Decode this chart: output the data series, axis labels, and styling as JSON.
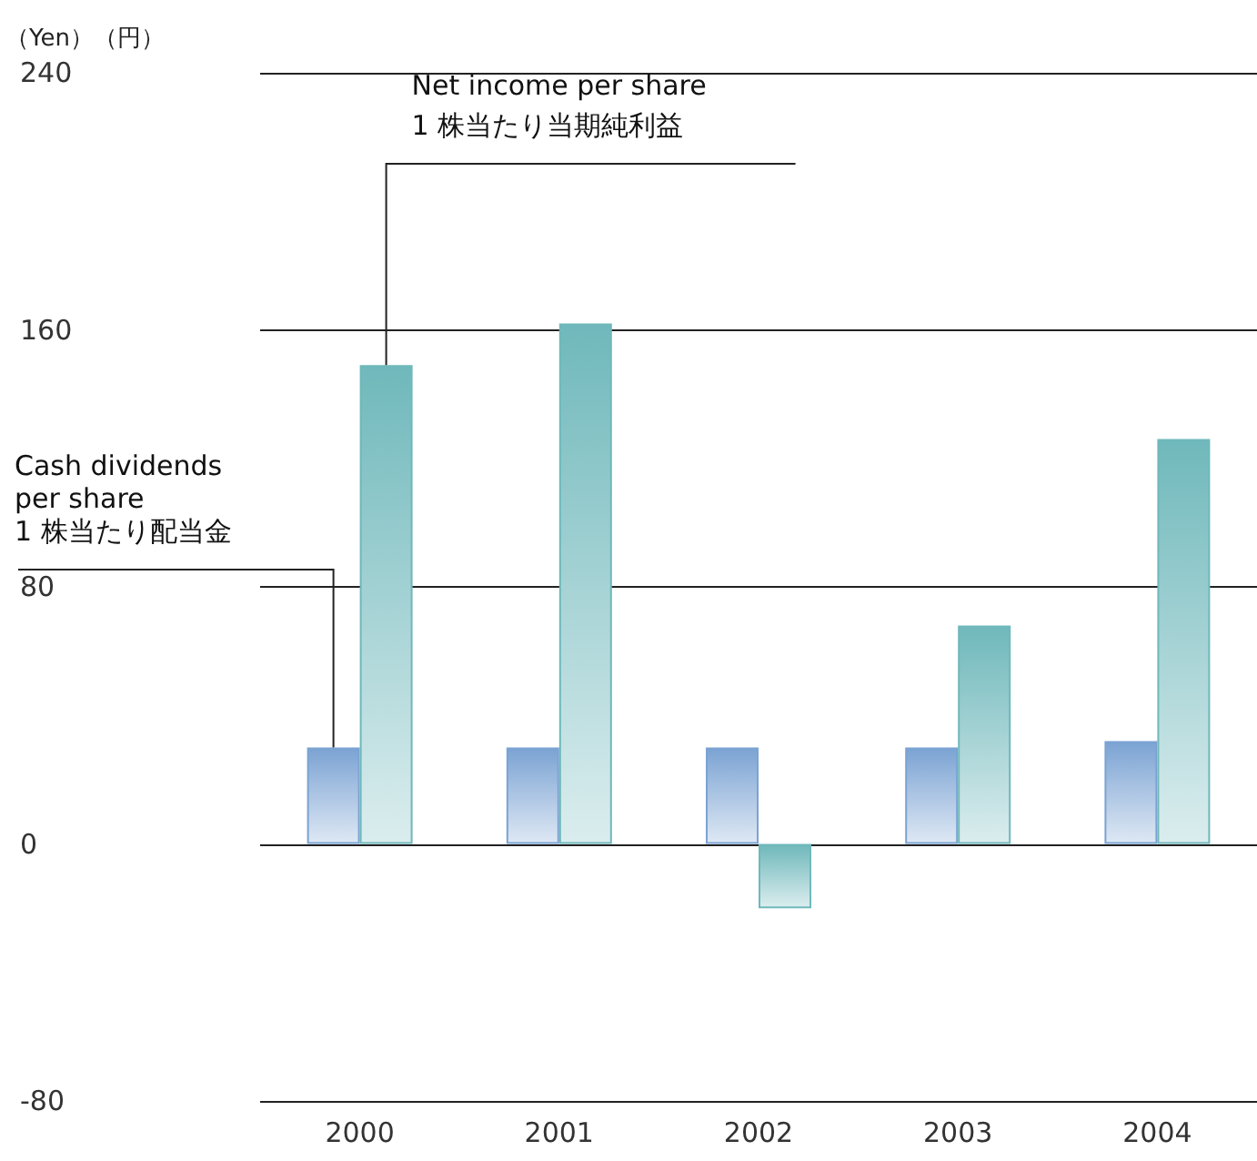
{
  "chart_data": {
    "type": "bar",
    "ylabel": "（Yen）（円）",
    "categories": [
      "2000",
      "2001",
      "2002",
      "2003",
      "2004"
    ],
    "series": [
      {
        "name": "Cash dividends\nper share\n1 株当たり配当金",
        "color": "#7ba3d3",
        "values": [
          30,
          30,
          30,
          30,
          32
        ]
      },
      {
        "name": "Net income per share\n1 株当たり当期純利益",
        "color": "#6fb8bb",
        "values": [
          149,
          162,
          -20,
          68,
          126
        ]
      }
    ],
    "ylim": [
      -80,
      240
    ],
    "yticks": [
      -80,
      0,
      80,
      160,
      240
    ],
    "grid": "y",
    "legend": false
  }
}
